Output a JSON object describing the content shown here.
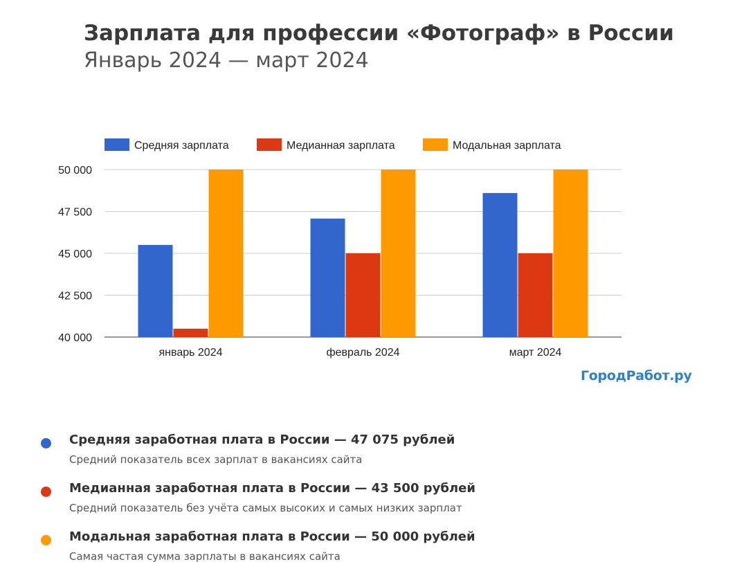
{
  "header": {
    "title": "Зарплата для профессии «Фотограф» в России",
    "subtitle": "Январь 2024 — март 2024"
  },
  "brand": {
    "label": "ГородРабот.ру"
  },
  "chart_data": {
    "type": "bar",
    "title": "Зарплата для профессии «Фотограф» в России",
    "subtitle": "Январь 2024 — март 2024",
    "categories": [
      "январь 2024",
      "февраль 2024",
      "март 2024"
    ],
    "series": [
      {
        "name": "Средняя зарплата",
        "color": "#3366cc",
        "values": [
          45500,
          47075,
          48600
        ]
      },
      {
        "name": "Медианная зарплата",
        "color": "#dc3912",
        "values": [
          40500,
          45000,
          45000
        ]
      },
      {
        "name": "Модальная зарплата",
        "color": "#ff9900",
        "values": [
          50000,
          50000,
          50000
        ]
      }
    ],
    "ylim": [
      40000,
      50000
    ],
    "yticks": [
      40000,
      42500,
      45000,
      47500,
      50000
    ],
    "ytick_labels": [
      "40 000",
      "42 500",
      "45 000",
      "47 500",
      "50 000"
    ],
    "xlabel": "",
    "ylabel": "",
    "grid": true,
    "legend_position": "top"
  },
  "stats": [
    {
      "title": "Средняя заработная плата в России — 47 075 рублей",
      "description": "Средний показатель всех зарплат в вакансиях сайта",
      "color": "#3366cc"
    },
    {
      "title": "Медианная заработная плата в России — 43 500 рублей",
      "description": "Средний показатель без учёта самых высоких и самых низких зарплат",
      "color": "#dc3912"
    },
    {
      "title": "Модальная заработная плата в России — 50 000 рублей",
      "description": "Самая частая сумма зарплаты в вакансиях сайта",
      "color": "#ff9900"
    }
  ]
}
